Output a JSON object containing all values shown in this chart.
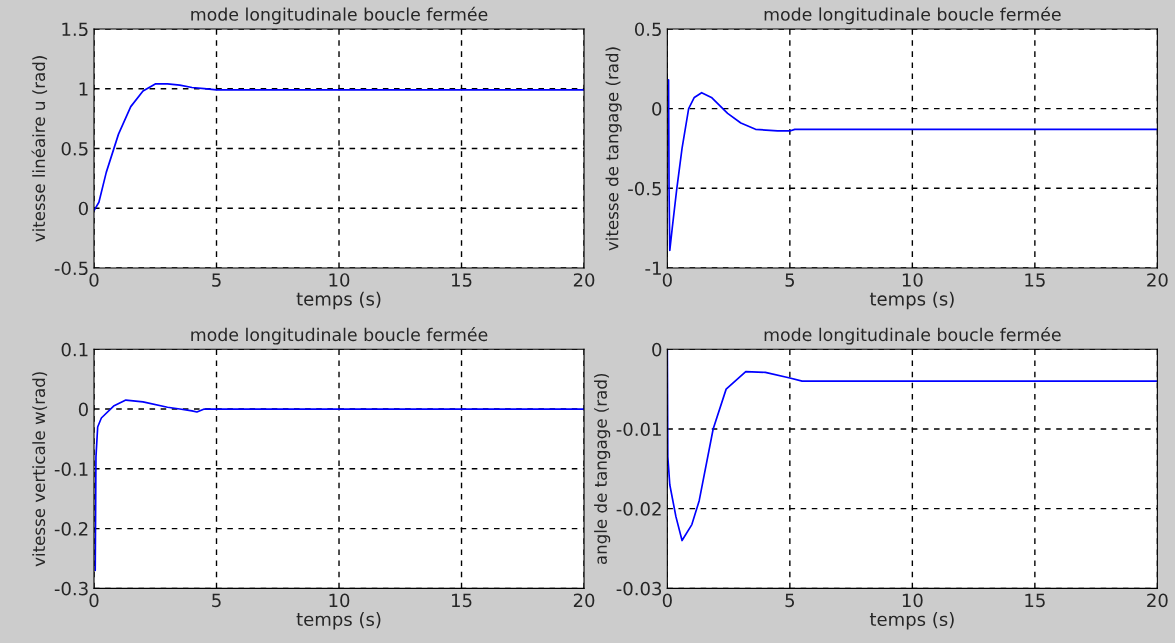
{
  "chart_data": [
    {
      "type": "line",
      "title": "mode longitudinale boucle fermée",
      "xlabel": "temps (s)",
      "ylabel": "vitesse linéaire u (rad)",
      "grid": true,
      "line_style": "solid",
      "xlim": [
        0,
        20
      ],
      "xticks": [
        0,
        5,
        10,
        15,
        20
      ],
      "ylim": [
        -0.5,
        1.5
      ],
      "yticks": [
        -0.5,
        0,
        0.5,
        1,
        1.5
      ],
      "series": [
        {
          "color": "#0000ff",
          "x": [
            0,
            0.2,
            0.5,
            1,
            1.5,
            2,
            2.5,
            3,
            3.5,
            4,
            4.5,
            5,
            10,
            15,
            20
          ],
          "values": [
            -0.02,
            0.05,
            0.3,
            0.62,
            0.85,
            0.98,
            1.04,
            1.04,
            1.03,
            1.01,
            1.0,
            0.99,
            0.99,
            0.99,
            0.99
          ]
        }
      ]
    },
    {
      "type": "line",
      "title": "mode longitudinale boucle fermée",
      "xlabel": "temps (s)",
      "ylabel": "vitesse de tangage (rad)",
      "grid": true,
      "line_style": "solid",
      "xlim": [
        0,
        20
      ],
      "xticks": [
        0,
        5,
        10,
        15,
        20
      ],
      "ylim": [
        -1,
        0.5
      ],
      "yticks": [
        -1,
        -0.5,
        0,
        0.5
      ],
      "series": [
        {
          "color": "#0000ff",
          "x": [
            0.05,
            0.07,
            0.1,
            0.2,
            0.38,
            0.6,
            0.87,
            1.1,
            1.4,
            1.8,
            2.46,
            3,
            3.6,
            4.5,
            5,
            5.2,
            10,
            15,
            20
          ],
          "values": [
            0.18,
            -0.5,
            -0.89,
            -0.75,
            -0.51,
            -0.25,
            0.0,
            0.07,
            0.1,
            0.07,
            -0.03,
            -0.09,
            -0.13,
            -0.14,
            -0.14,
            -0.13,
            -0.13,
            -0.13,
            -0.13
          ]
        }
      ]
    },
    {
      "type": "line",
      "title": "mode longitudinale boucle fermée",
      "xlabel": "temps (s)",
      "ylabel": "vitesse verticale w(rad)",
      "grid": true,
      "line_style": "solid",
      "xlim": [
        0,
        20
      ],
      "xticks": [
        0,
        5,
        10,
        15,
        20
      ],
      "ylim": [
        -0.3,
        0.1
      ],
      "yticks": [
        -0.3,
        -0.2,
        -0.1,
        0,
        0.1
      ],
      "series": [
        {
          "color": "#0000ff",
          "x": [
            0.05,
            0.08,
            0.15,
            0.3,
            0.8,
            1.3,
            2,
            3,
            3.5,
            4.0,
            4.2,
            4.5,
            10,
            15,
            20
          ],
          "values": [
            -0.27,
            -0.08,
            -0.03,
            -0.015,
            0.005,
            0.015,
            0.012,
            0.003,
            0.0,
            -0.003,
            -0.005,
            0.0,
            0.0,
            0.0,
            0.0
          ]
        }
      ]
    },
    {
      "type": "line",
      "title": "mode longitudinale boucle fermée",
      "xlabel": "temps (s)",
      "ylabel": "angle de tangage (rad)",
      "grid": true,
      "line_style": "solid",
      "xlim": [
        0,
        20
      ],
      "xticks": [
        0,
        5,
        10,
        15,
        20
      ],
      "ylim": [
        -0.03,
        0
      ],
      "yticks": [
        -0.03,
        -0.02,
        -0.01,
        0
      ],
      "series": [
        {
          "color": "#0000ff",
          "x": [
            0,
            0.02,
            0.1,
            0.35,
            0.6,
            1.0,
            1.3,
            1.87,
            2.4,
            3.2,
            4.0,
            5,
            5.5,
            10,
            15,
            20
          ],
          "values": [
            0,
            -0.0135,
            -0.017,
            -0.021,
            -0.024,
            -0.022,
            -0.019,
            -0.01,
            -0.005,
            -0.0028,
            -0.0029,
            -0.0036,
            -0.004,
            -0.004,
            -0.004,
            -0.004
          ]
        }
      ]
    }
  ]
}
